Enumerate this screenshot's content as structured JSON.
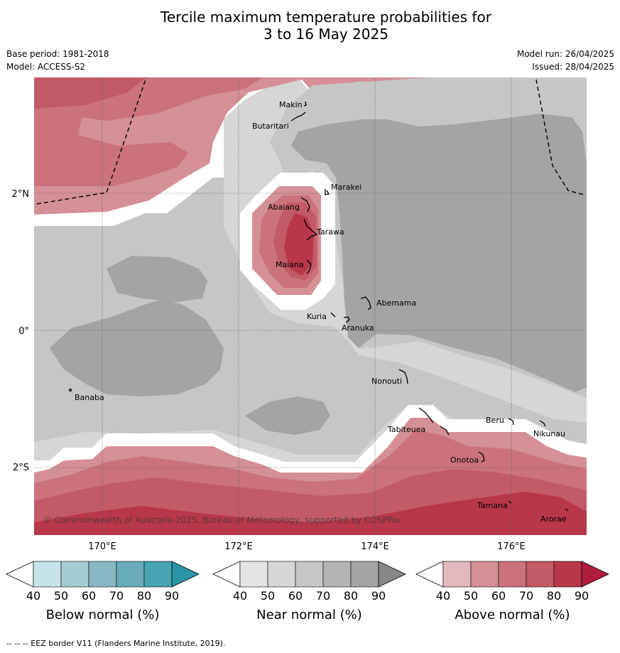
{
  "title_line1": "Tercile maximum temperature probabilities for",
  "title_line2": "3 to 16 May 2025",
  "meta": {
    "base_period": "Base period: 1981-2018",
    "model": "Model: ACCESS-S2",
    "model_run": "Model run: 26/04/2025",
    "issued": "Issued: 28/04/2025"
  },
  "axes": {
    "lon_labels": [
      "170°E",
      "172°E",
      "174°E",
      "176°E"
    ],
    "lat_labels": [
      "2°N",
      "0°",
      "2°S"
    ]
  },
  "places": [
    "Makin",
    "Butaritari",
    "Marakei",
    "Abaiang",
    "Tarawa",
    "Maiana",
    "Abemama",
    "Kuria",
    "Aranuka",
    "Nonouti",
    "Banaba",
    "Tabiteuea",
    "Beru",
    "Nikunau",
    "Onotoa",
    "Tamana",
    "Arorae"
  ],
  "copyright": "© Commonwealth of Australia 2025, Bureau of Meteorology, supported by COSPPac",
  "legends": [
    {
      "label": "Below normal (%)",
      "ticks": [
        "40",
        "50",
        "60",
        "70",
        "80",
        "90"
      ],
      "colors": [
        "#ffffff",
        "#c8e2ea",
        "#a6cbd3",
        "#89b7c3",
        "#6aacba",
        "#48a3b2",
        "#2a93a7"
      ]
    },
    {
      "label": "Near normal (%)",
      "ticks": [
        "40",
        "50",
        "60",
        "70",
        "80",
        "90"
      ],
      "colors": [
        "#ffffff",
        "#e4e4e4",
        "#d6d6d6",
        "#c6c6c6",
        "#b4b4b4",
        "#a4a4a4",
        "#888888"
      ]
    },
    {
      "label": "Above normal (%)",
      "ticks": [
        "40",
        "50",
        "60",
        "70",
        "80",
        "90"
      ],
      "colors": [
        "#ffffff",
        "#e2b9bf",
        "#d58f97",
        "#cb727c",
        "#c35a68",
        "#b9374a",
        "#b01d3d"
      ]
    }
  ],
  "footer": "--  --  -- EEZ border V11 (Flanders Marine Institute, 2019)."
}
